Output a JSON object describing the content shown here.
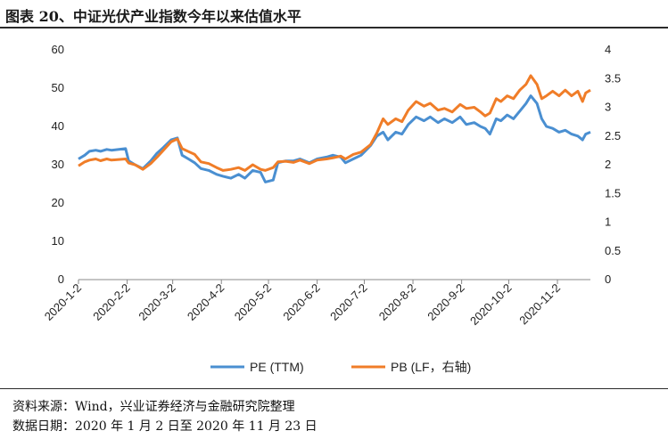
{
  "figure": {
    "title": "图表 20、中证光伏产业指数今年以来估值水平",
    "source": "资料来源：Wind，兴业证券经济与金融研究院整理",
    "date_note": "数据日期：2020 年 1 月 2 日至 2020 年 11 月 23 日"
  },
  "chart_data": {
    "type": "line",
    "x_tick_labels": [
      "2020-1-2",
      "2020-2-2",
      "2020-3-2",
      "2020-4-2",
      "2020-5-2",
      "2020-6-2",
      "2020-7-2",
      "2020-8-2",
      "2020-9-2",
      "2020-10-2",
      "2020-11-2"
    ],
    "x_start": "2020-01-02",
    "x_end": "2020-11-23",
    "y_left": {
      "min": 0,
      "max": 60,
      "ticks": [
        0,
        10,
        20,
        30,
        40,
        50,
        60
      ]
    },
    "y_right": {
      "min": 0,
      "max": 4,
      "ticks": [
        "0",
        "0.5",
        "1",
        "1.5",
        "2",
        "2.5",
        "3",
        "3.5",
        "4"
      ]
    },
    "grid": false,
    "legend_position": "bottom",
    "series": [
      {
        "name": "PE (TTM)",
        "axis": "left",
        "color": "#4a8fd1",
        "points": [
          [
            "2020-01-02",
            31.5
          ],
          [
            "2020-01-06",
            32.5
          ],
          [
            "2020-01-09",
            33.5
          ],
          [
            "2020-01-13",
            33.8
          ],
          [
            "2020-01-16",
            33.5
          ],
          [
            "2020-01-20",
            34.0
          ],
          [
            "2020-01-23",
            33.8
          ],
          [
            "2020-02-01",
            34.2
          ],
          [
            "2020-02-03",
            31.0
          ],
          [
            "2020-02-07",
            30.0
          ],
          [
            "2020-02-12",
            29.0
          ],
          [
            "2020-02-17",
            31.0
          ],
          [
            "2020-02-21",
            33.0
          ],
          [
            "2020-02-25",
            34.5
          ],
          [
            "2020-03-01",
            36.5
          ],
          [
            "2020-03-05",
            37.0
          ],
          [
            "2020-03-08",
            32.5
          ],
          [
            "2020-03-12",
            31.5
          ],
          [
            "2020-03-16",
            30.5
          ],
          [
            "2020-03-20",
            29.0
          ],
          [
            "2020-03-25",
            28.5
          ],
          [
            "2020-03-30",
            27.5
          ],
          [
            "2020-04-03",
            27.0
          ],
          [
            "2020-04-08",
            26.5
          ],
          [
            "2020-04-13",
            27.5
          ],
          [
            "2020-04-17",
            26.5
          ],
          [
            "2020-04-22",
            28.5
          ],
          [
            "2020-04-27",
            28.0
          ],
          [
            "2020-04-30",
            25.5
          ],
          [
            "2020-05-05",
            26.0
          ],
          [
            "2020-05-08",
            30.5
          ],
          [
            "2020-05-13",
            31.0
          ],
          [
            "2020-05-18",
            31.0
          ],
          [
            "2020-05-22",
            31.5
          ],
          [
            "2020-05-28",
            30.5
          ],
          [
            "2020-06-02",
            31.5
          ],
          [
            "2020-06-08",
            32.0
          ],
          [
            "2020-06-12",
            32.5
          ],
          [
            "2020-06-17",
            32.0
          ],
          [
            "2020-06-20",
            30.5
          ],
          [
            "2020-06-25",
            31.5
          ],
          [
            "2020-06-30",
            32.5
          ],
          [
            "2020-07-06",
            35.0
          ],
          [
            "2020-07-10",
            37.5
          ],
          [
            "2020-07-14",
            38.5
          ],
          [
            "2020-07-17",
            36.5
          ],
          [
            "2020-07-22",
            38.5
          ],
          [
            "2020-07-26",
            38.0
          ],
          [
            "2020-07-30",
            40.5
          ],
          [
            "2020-08-04",
            42.5
          ],
          [
            "2020-08-09",
            41.5
          ],
          [
            "2020-08-13",
            42.5
          ],
          [
            "2020-08-18",
            41.0
          ],
          [
            "2020-08-22",
            42.0
          ],
          [
            "2020-08-27",
            41.0
          ],
          [
            "2020-09-01",
            42.5
          ],
          [
            "2020-09-05",
            40.5
          ],
          [
            "2020-09-10",
            41.0
          ],
          [
            "2020-09-14",
            40.0
          ],
          [
            "2020-09-17",
            39.5
          ],
          [
            "2020-09-20",
            38.0
          ],
          [
            "2020-09-24",
            42.0
          ],
          [
            "2020-09-27",
            41.5
          ],
          [
            "2020-10-01",
            43.0
          ],
          [
            "2020-10-05",
            42.0
          ],
          [
            "2020-10-09",
            44.0
          ],
          [
            "2020-10-13",
            46.0
          ],
          [
            "2020-10-16",
            48.0
          ],
          [
            "2020-10-20",
            46.0
          ],
          [
            "2020-10-23",
            42.0
          ],
          [
            "2020-10-26",
            40.0
          ],
          [
            "2020-10-30",
            39.5
          ],
          [
            "2020-11-03",
            38.5
          ],
          [
            "2020-11-07",
            39.0
          ],
          [
            "2020-11-11",
            38.0
          ],
          [
            "2020-11-15",
            37.5
          ],
          [
            "2020-11-18",
            36.5
          ],
          [
            "2020-11-20",
            38.0
          ],
          [
            "2020-11-23",
            38.5
          ]
        ]
      },
      {
        "name": "PB (LF，右轴)",
        "axis": "right",
        "color": "#f07d28",
        "points": [
          [
            "2020-01-02",
            1.98
          ],
          [
            "2020-01-06",
            2.05
          ],
          [
            "2020-01-09",
            2.08
          ],
          [
            "2020-01-13",
            2.1
          ],
          [
            "2020-01-16",
            2.07
          ],
          [
            "2020-01-20",
            2.1
          ],
          [
            "2020-01-23",
            2.08
          ],
          [
            "2020-02-01",
            2.1
          ],
          [
            "2020-02-03",
            2.03
          ],
          [
            "2020-02-07",
            2.0
          ],
          [
            "2020-02-12",
            1.92
          ],
          [
            "2020-02-17",
            2.02
          ],
          [
            "2020-02-21",
            2.13
          ],
          [
            "2020-02-25",
            2.25
          ],
          [
            "2020-03-01",
            2.4
          ],
          [
            "2020-03-05",
            2.45
          ],
          [
            "2020-03-08",
            2.28
          ],
          [
            "2020-03-12",
            2.23
          ],
          [
            "2020-03-16",
            2.18
          ],
          [
            "2020-03-20",
            2.05
          ],
          [
            "2020-03-25",
            2.02
          ],
          [
            "2020-03-30",
            1.95
          ],
          [
            "2020-04-03",
            1.9
          ],
          [
            "2020-04-08",
            1.92
          ],
          [
            "2020-04-13",
            1.95
          ],
          [
            "2020-04-17",
            1.9
          ],
          [
            "2020-04-22",
            2.0
          ],
          [
            "2020-04-27",
            1.92
          ],
          [
            "2020-04-30",
            1.9
          ],
          [
            "2020-05-05",
            1.95
          ],
          [
            "2020-05-08",
            2.05
          ],
          [
            "2020-05-13",
            2.06
          ],
          [
            "2020-05-18",
            2.04
          ],
          [
            "2020-05-22",
            2.08
          ],
          [
            "2020-05-28",
            2.02
          ],
          [
            "2020-06-02",
            2.08
          ],
          [
            "2020-06-08",
            2.1
          ],
          [
            "2020-06-12",
            2.12
          ],
          [
            "2020-06-17",
            2.15
          ],
          [
            "2020-06-20",
            2.1
          ],
          [
            "2020-06-25",
            2.18
          ],
          [
            "2020-06-30",
            2.22
          ],
          [
            "2020-07-06",
            2.35
          ],
          [
            "2020-07-10",
            2.55
          ],
          [
            "2020-07-14",
            2.8
          ],
          [
            "2020-07-17",
            2.7
          ],
          [
            "2020-07-22",
            2.8
          ],
          [
            "2020-07-26",
            2.75
          ],
          [
            "2020-07-30",
            2.95
          ],
          [
            "2020-08-04",
            3.1
          ],
          [
            "2020-08-09",
            3.02
          ],
          [
            "2020-08-13",
            3.07
          ],
          [
            "2020-08-18",
            2.95
          ],
          [
            "2020-08-22",
            2.98
          ],
          [
            "2020-08-27",
            2.92
          ],
          [
            "2020-09-01",
            3.05
          ],
          [
            "2020-09-05",
            2.98
          ],
          [
            "2020-09-10",
            3.0
          ],
          [
            "2020-09-14",
            2.92
          ],
          [
            "2020-09-17",
            2.85
          ],
          [
            "2020-09-20",
            2.9
          ],
          [
            "2020-09-24",
            3.15
          ],
          [
            "2020-09-27",
            3.1
          ],
          [
            "2020-10-01",
            3.2
          ],
          [
            "2020-10-05",
            3.15
          ],
          [
            "2020-10-09",
            3.3
          ],
          [
            "2020-10-13",
            3.4
          ],
          [
            "2020-10-16",
            3.55
          ],
          [
            "2020-10-20",
            3.4
          ],
          [
            "2020-10-23",
            3.15
          ],
          [
            "2020-10-26",
            3.2
          ],
          [
            "2020-10-30",
            3.28
          ],
          [
            "2020-11-03",
            3.2
          ],
          [
            "2020-11-07",
            3.3
          ],
          [
            "2020-11-11",
            3.2
          ],
          [
            "2020-11-15",
            3.28
          ],
          [
            "2020-11-18",
            3.1
          ],
          [
            "2020-11-20",
            3.25
          ],
          [
            "2020-11-23",
            3.3
          ]
        ]
      }
    ]
  }
}
